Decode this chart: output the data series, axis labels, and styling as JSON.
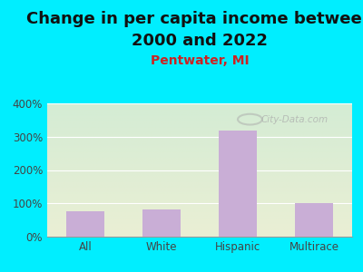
{
  "title_line1": "Change in per capita income between",
  "title_line2": "2000 and 2022",
  "subtitle": "Pentwater, MI",
  "categories": [
    "All",
    "White",
    "Hispanic",
    "Multirace"
  ],
  "values": [
    75,
    82,
    318,
    100
  ],
  "bar_color": "#c9aed6",
  "title_fontsize": 13,
  "subtitle_fontsize": 10,
  "subtitle_color": "#cc2222",
  "title_color": "#111111",
  "background_outer": "#00eeff",
  "background_inner_top_left": "#d4ecd4",
  "background_inner_bottom_right": "#eaefd4",
  "ylim": [
    0,
    400
  ],
  "yticks": [
    0,
    100,
    200,
    300,
    400
  ],
  "watermark_text": "City-Data.com",
  "watermark_color": "#aaaaaa"
}
